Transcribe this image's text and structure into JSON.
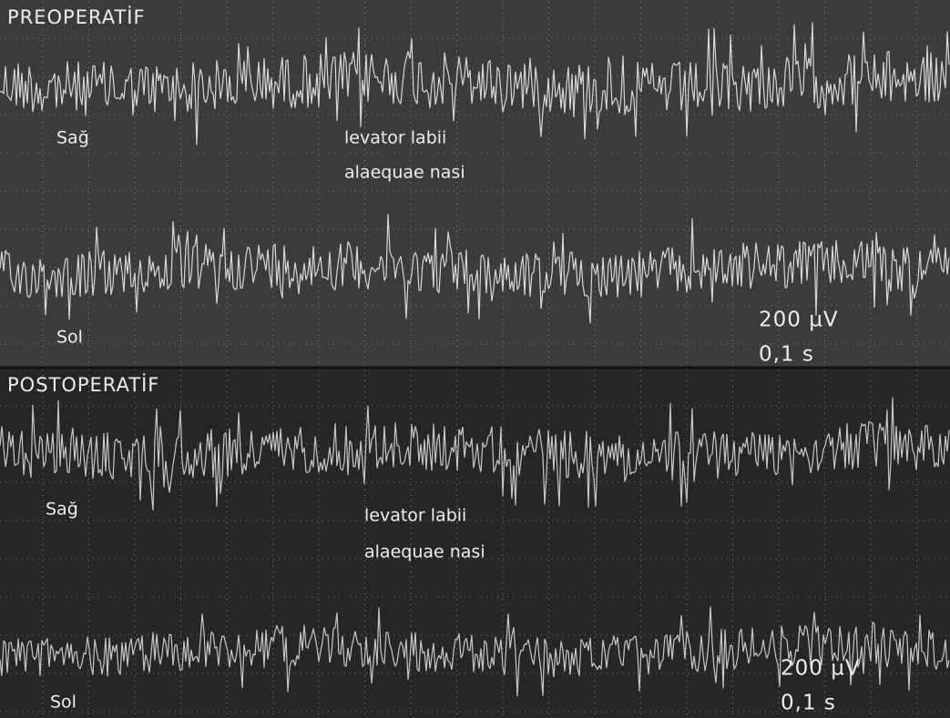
{
  "panels": [
    {
      "title": "PREOPERATİF",
      "upper_side": "Sağ",
      "lower_side": "Sol",
      "muscle": [
        "levator labii",
        "alaequae nasi"
      ],
      "scale": [
        "200 µV",
        "0,1 s"
      ]
    },
    {
      "title": "POSTOPERATİF",
      "upper_side": "Sağ",
      "lower_side": "Sol",
      "muscle": [
        "levator labii",
        "alaequae nasi"
      ],
      "scale": [
        "200 µV",
        "0,1 s"
      ]
    }
  ]
}
